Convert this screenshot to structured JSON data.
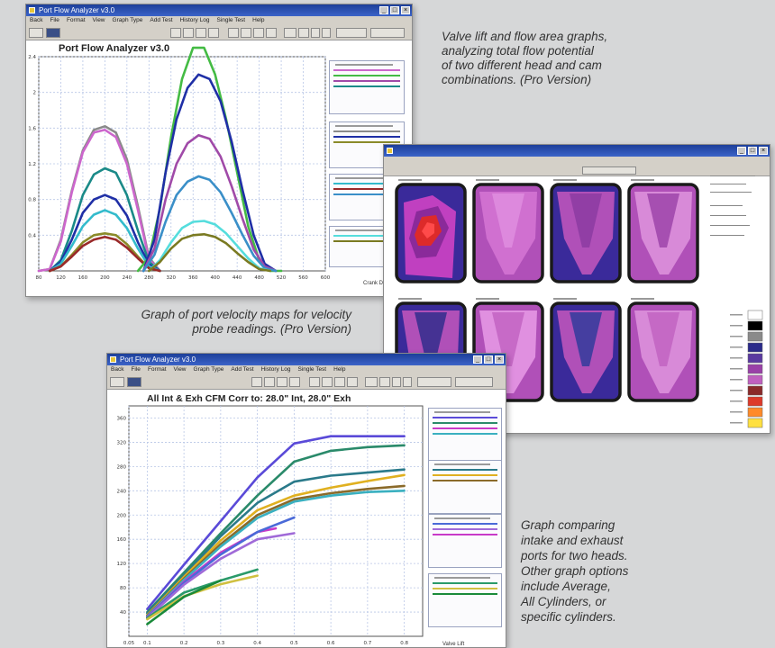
{
  "colors": {
    "page_background": "#d6d7d8",
    "titlebar": "#1d3f9a",
    "grid": "#b8c6e6"
  },
  "window1": {
    "title": "Port Flow Analyzer v3.0",
    "menus": [
      "Back",
      "File",
      "Format",
      "View",
      "Graph Type",
      "Add Test",
      "History Log",
      "Single Test",
      "Help"
    ],
    "plot_title": "Port Flow Analyzer v3.0",
    "x_axis_label": "Crank Deg",
    "chart_data": {
      "type": "line",
      "title": "Port Flow Analyzer v3.0",
      "xlabel": "Crank Deg",
      "ylabel": "",
      "x_ticks": [
        80,
        120,
        160,
        200,
        240,
        280,
        320,
        360,
        400,
        440,
        480,
        520,
        560,
        600
      ],
      "y_ticks": [
        0.4,
        0.8,
        1.2,
        1.6,
        2.0,
        2.4
      ],
      "xlim": [
        80,
        600
      ],
      "ylim": [
        0,
        2.4
      ],
      "series": [
        {
          "color": "#8a8a8a",
          "x": [
            80,
            100,
            120,
            140,
            160,
            180,
            200,
            220,
            240,
            260,
            280,
            300
          ],
          "values": [
            0,
            0.02,
            0.35,
            0.9,
            1.35,
            1.58,
            1.62,
            1.55,
            1.25,
            0.72,
            0.15,
            0
          ]
        },
        {
          "color": "#cc66cc",
          "x": [
            80,
            100,
            120,
            140,
            160,
            180,
            200,
            220,
            240,
            260,
            280,
            300
          ],
          "values": [
            0,
            0.02,
            0.33,
            0.88,
            1.33,
            1.55,
            1.58,
            1.5,
            1.2,
            0.68,
            0.13,
            0
          ]
        },
        {
          "color": "#1a8a88",
          "x": [
            100,
            120,
            140,
            160,
            180,
            200,
            220,
            240,
            260,
            280,
            300
          ],
          "values": [
            0,
            0.12,
            0.45,
            0.85,
            1.08,
            1.15,
            1.1,
            0.85,
            0.45,
            0.1,
            0
          ]
        },
        {
          "color": "#1f2fa6",
          "x": [
            100,
            120,
            140,
            160,
            180,
            200,
            220,
            240,
            260,
            280,
            300
          ],
          "values": [
            0,
            0.1,
            0.35,
            0.65,
            0.8,
            0.85,
            0.8,
            0.62,
            0.32,
            0.07,
            0
          ]
        },
        {
          "color": "#33bbcc",
          "x": [
            100,
            120,
            140,
            160,
            180,
            200,
            220,
            240,
            260,
            280,
            300
          ],
          "values": [
            0,
            0.08,
            0.28,
            0.5,
            0.63,
            0.68,
            0.63,
            0.48,
            0.25,
            0.05,
            0
          ]
        },
        {
          "color": "#8b8b2a",
          "x": [
            100,
            120,
            140,
            160,
            180,
            200,
            220,
            240,
            260,
            280,
            300
          ],
          "values": [
            0,
            0.05,
            0.18,
            0.32,
            0.4,
            0.42,
            0.4,
            0.3,
            0.16,
            0.03,
            0
          ]
        },
        {
          "color": "#9a2a2a",
          "x": [
            100,
            120,
            140,
            160,
            180,
            200,
            220,
            240,
            260,
            280,
            300
          ],
          "values": [
            0,
            0.05,
            0.16,
            0.28,
            0.35,
            0.38,
            0.35,
            0.26,
            0.14,
            0.03,
            0
          ]
        },
        {
          "color": "#44bb44",
          "x": [
            260,
            280,
            300,
            320,
            340,
            360,
            380,
            400,
            420,
            440,
            460,
            480,
            500,
            520
          ],
          "values": [
            0,
            0.15,
            0.7,
            1.5,
            2.15,
            2.5,
            2.5,
            2.2,
            1.7,
            1.1,
            0.5,
            0.12,
            0,
            0
          ]
        },
        {
          "color": "#1f2fa6",
          "x": [
            270,
            290,
            310,
            330,
            350,
            370,
            390,
            410,
            430,
            450,
            470,
            490,
            510
          ],
          "values": [
            0,
            0.35,
            1.1,
            1.7,
            2.05,
            2.2,
            2.15,
            1.9,
            1.45,
            0.9,
            0.4,
            0.08,
            0
          ]
        },
        {
          "color": "#a04aa8",
          "x": [
            270,
            290,
            310,
            330,
            350,
            370,
            390,
            410,
            430,
            450,
            470,
            490,
            510
          ],
          "values": [
            0,
            0.25,
            0.8,
            1.2,
            1.43,
            1.52,
            1.48,
            1.28,
            0.95,
            0.58,
            0.24,
            0.05,
            0
          ]
        },
        {
          "color": "#3a8fc8",
          "x": [
            270,
            290,
            310,
            330,
            350,
            370,
            390,
            410,
            430,
            450,
            470,
            490,
            510
          ],
          "values": [
            0,
            0.18,
            0.55,
            0.85,
            1.0,
            1.06,
            1.02,
            0.88,
            0.65,
            0.4,
            0.17,
            0.03,
            0
          ]
        },
        {
          "color": "#55dddd",
          "x": [
            280,
            300,
            320,
            340,
            360,
            380,
            400,
            420,
            440,
            460,
            480,
            500
          ],
          "values": [
            0,
            0.12,
            0.32,
            0.48,
            0.55,
            0.56,
            0.52,
            0.42,
            0.28,
            0.14,
            0.03,
            0
          ]
        },
        {
          "color": "#7a7a22",
          "x": [
            280,
            300,
            320,
            340,
            360,
            380,
            400,
            420,
            440,
            460,
            480,
            500
          ],
          "values": [
            0,
            0.1,
            0.25,
            0.36,
            0.4,
            0.41,
            0.38,
            0.31,
            0.2,
            0.1,
            0.02,
            0
          ]
        }
      ]
    }
  },
  "caption1": "Valve lift and flow area graphs,\nanalyzing total flow potential\nof two different head and cam\ncombinations. (Pro Version)",
  "window2": {
    "maps": [
      {
        "palette": [
          "#3a2a9a",
          "#8a2a9a",
          "#c040c0",
          "#dd2a2a",
          "#ff4a4a"
        ]
      },
      {
        "palette": [
          "#b050b8",
          "#d070d0",
          "#e090e0"
        ]
      },
      {
        "palette": [
          "#3a2a9a",
          "#b050b8",
          "#8a3aa0"
        ]
      },
      {
        "palette": [
          "#b050b8",
          "#d88ad8",
          "#9a40a8"
        ]
      },
      {
        "palette": [
          "#3a2a9a",
          "#b050b8",
          "#2a2a8a"
        ]
      },
      {
        "palette": [
          "#b050b8",
          "#e090e0",
          "#c060c0"
        ]
      },
      {
        "palette": [
          "#3a2a9a",
          "#b050b8",
          "#2a3a9a"
        ]
      },
      {
        "palette": [
          "#b050b8",
          "#d88ad8",
          "#c060c0"
        ]
      }
    ],
    "legend_colors": [
      "#ffffff",
      "#000000",
      "#8a8a8a",
      "#2a2a8a",
      "#5a3aa0",
      "#9a40a8",
      "#c060c0",
      "#8a2a2a",
      "#dd3a2a",
      "#ff8a2a",
      "#ffe040"
    ]
  },
  "caption2": "Graph of port velocity maps for velocity\nprobe readings. (Pro Version)",
  "window3": {
    "title": "Port Flow Analyzer v3.0",
    "menus": [
      "Back",
      "File",
      "Format",
      "View",
      "Graph Type",
      "Add Test",
      "History Log",
      "Single Test",
      "Help"
    ],
    "plot_title": "All Int & Exh CFM    Corr to: 28.0\" Int, 28.0\" Exh",
    "x_axis_label": "Valve Lift",
    "chart_data": {
      "type": "line",
      "title": "All Int & Exh CFM    Corr to: 28.0\" Int, 28.0\" Exh",
      "xlabel": "Valve Lift",
      "ylabel": "",
      "x_ticks": [
        0.05,
        0.1,
        0.2,
        0.3,
        0.4,
        0.5,
        0.6,
        0.7,
        0.8
      ],
      "y_ticks": [
        40.0,
        80.0,
        120.0,
        160.0,
        200.0,
        240.0,
        280.0,
        320.0,
        360.0
      ],
      "xlim": [
        0.05,
        0.85
      ],
      "ylim": [
        0,
        380
      ],
      "series": [
        {
          "color": "#5a4ad8",
          "x": [
            0.1,
            0.2,
            0.3,
            0.4,
            0.5,
            0.6,
            0.7,
            0.8
          ],
          "values": [
            45,
            118,
            190,
            262,
            318,
            330,
            330,
            330
          ]
        },
        {
          "color": "#2a8a6a",
          "x": [
            0.1,
            0.2,
            0.3,
            0.4,
            0.5,
            0.6,
            0.7,
            0.8
          ],
          "values": [
            40,
            105,
            170,
            232,
            288,
            306,
            312,
            315
          ]
        },
        {
          "color": "#2a7a8a",
          "x": [
            0.1,
            0.2,
            0.3,
            0.4,
            0.5,
            0.6,
            0.7,
            0.8
          ],
          "values": [
            38,
            100,
            165,
            220,
            255,
            265,
            270,
            275
          ]
        },
        {
          "color": "#e0b020",
          "x": [
            0.1,
            0.2,
            0.3,
            0.4,
            0.5,
            0.6,
            0.7,
            0.8
          ],
          "values": [
            35,
            98,
            158,
            208,
            232,
            245,
            256,
            266
          ]
        },
        {
          "color": "#8a6a2a",
          "x": [
            0.1,
            0.2,
            0.3,
            0.4,
            0.5,
            0.6,
            0.7,
            0.8
          ],
          "values": [
            34,
            95,
            152,
            200,
            226,
            236,
            243,
            248
          ]
        },
        {
          "color": "#3ab0c0",
          "x": [
            0.1,
            0.2,
            0.3,
            0.4,
            0.5,
            0.6,
            0.7,
            0.8
          ],
          "values": [
            33,
            93,
            148,
            195,
            222,
            232,
            238,
            240
          ]
        },
        {
          "color": "#c83ac8",
          "x": [
            0.1,
            0.2,
            0.3,
            0.4,
            0.45
          ],
          "values": [
            32,
            90,
            138,
            172,
            178
          ]
        },
        {
          "color": "#4a6ad8",
          "x": [
            0.1,
            0.2,
            0.3,
            0.4,
            0.5
          ],
          "values": [
            31,
            88,
            135,
            172,
            196
          ]
        },
        {
          "color": "#a06ad8",
          "x": [
            0.1,
            0.2,
            0.3,
            0.4,
            0.5
          ],
          "values": [
            30,
            85,
            128,
            160,
            170
          ]
        },
        {
          "color": "#2a9a6a",
          "x": [
            0.1,
            0.2,
            0.3,
            0.4
          ],
          "values": [
            30,
            72,
            92,
            110
          ]
        },
        {
          "color": "#d0c040",
          "x": [
            0.1,
            0.2,
            0.3,
            0.4
          ],
          "values": [
            28,
            66,
            86,
            100
          ]
        },
        {
          "color": "#1a8a3a",
          "x": [
            0.1,
            0.2,
            0.3
          ],
          "values": [
            20,
            65,
            92
          ]
        }
      ]
    }
  },
  "caption3": "Graph comparing\nintake and exhaust\nports for two heads.\nOther graph options\ninclude Average,\nAll Cylinders, or\nspecific cylinders."
}
